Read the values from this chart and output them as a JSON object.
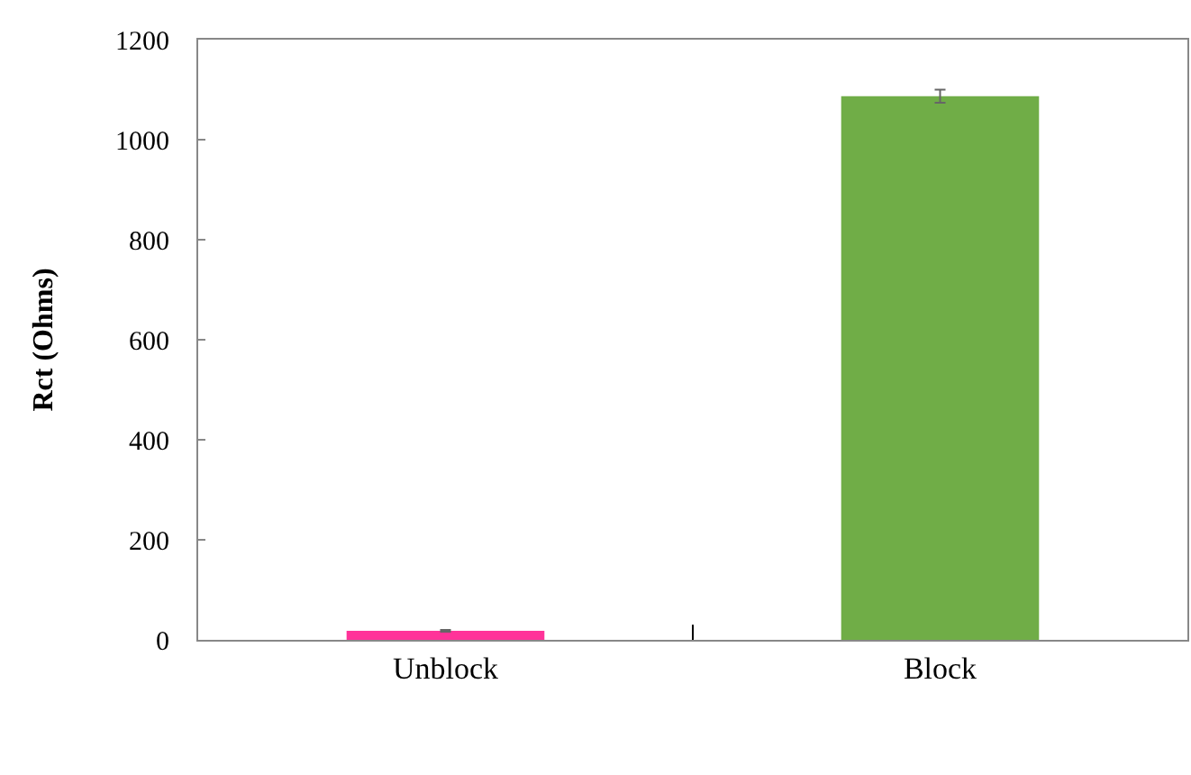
{
  "chart_data": {
    "type": "bar",
    "ylabel": "Rct (Ohms)",
    "categories": [
      "Unblock",
      "Block"
    ],
    "values": [
      18,
      1087
    ],
    "colors": [
      "#ff3399",
      "#70ad47"
    ],
    "errors": [
      2,
      13
    ],
    "ylim": [
      0,
      1200
    ],
    "yticks": [
      0,
      200,
      400,
      600,
      800,
      1000,
      1200
    ],
    "grid": false
  }
}
